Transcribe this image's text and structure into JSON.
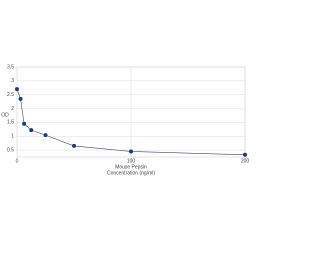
{
  "chart_data": {
    "type": "line",
    "ylabel": "OD",
    "xlabel": [
      "Mouse Pepsin",
      "Concentration (ng/ml)"
    ],
    "x": [
      0,
      3.125,
      6.25,
      12.5,
      25,
      50,
      100,
      200
    ],
    "series": [
      {
        "color": "#1f3d6b",
        "values": [
          2.7,
          2.35,
          1.45,
          1.22,
          1.04,
          0.65,
          0.45,
          0.33
        ]
      }
    ],
    "xlim": [
      0,
      200
    ],
    "xticks": [
      0,
      100,
      200
    ],
    "ylim": [
      0.25,
      3.5
    ],
    "yticks": [
      0.5,
      1,
      1.5,
      2,
      2.5,
      3,
      3.5
    ],
    "grid": true
  }
}
